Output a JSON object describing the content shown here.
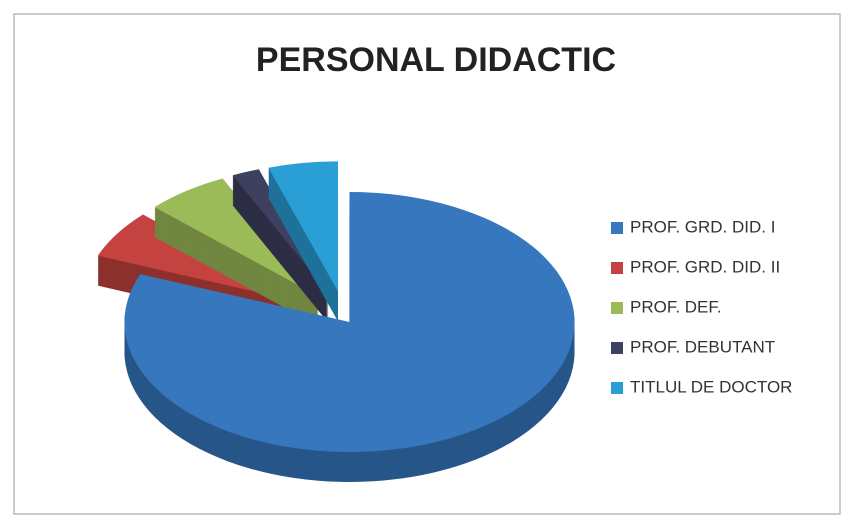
{
  "chart_data": {
    "type": "pie",
    "title": "PERSONAL DIDACTIC",
    "categories": [
      "PROF. GRD. DID. I",
      "PROF. GRD. DID. II",
      "PROF. DEF.",
      "PROF. DEBUTANT",
      "TITLUL DE DOCTOR"
    ],
    "values": [
      81,
      6,
      6,
      2,
      5
    ],
    "colors": [
      "#3677be",
      "#c4423f",
      "#9bbb59",
      "#3e4060",
      "#2a9fd6"
    ],
    "legend": "right"
  }
}
